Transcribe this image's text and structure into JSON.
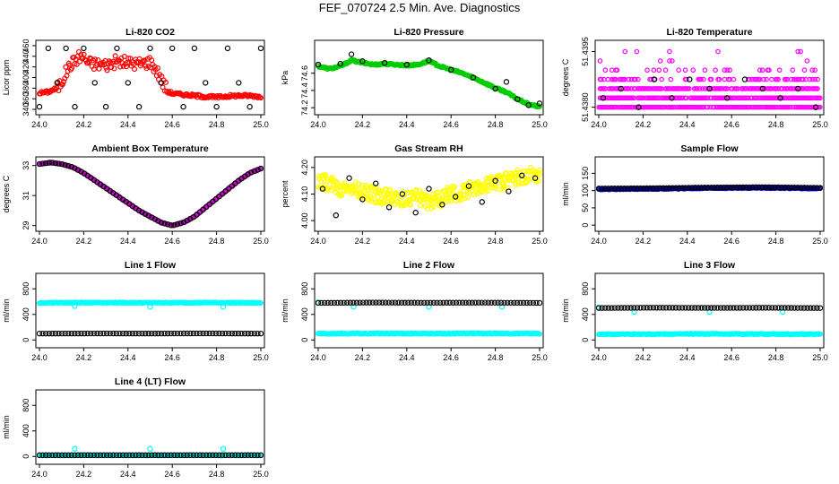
{
  "figure": {
    "title": "FEF_070724  2.5 Min. Ave. Diagnostics"
  },
  "chart_data": [
    {
      "type": "scatter",
      "title": "Li-820 CO2",
      "ylabel": "Licor ppm",
      "xlim": [
        24.0,
        25.0
      ],
      "ylim": [
        335,
        465
      ],
      "xticks": [
        "24.0",
        "24.2",
        "24.4",
        "24.6",
        "24.8",
        "25.0"
      ],
      "yticks": [
        "340",
        "360",
        "380",
        "400",
        "420",
        "440",
        "460"
      ],
      "main_color": "#ff0000",
      "series": [
        {
          "name": "main",
          "color": "#ff0000",
          "x": [
            24.0,
            24.04,
            24.08,
            24.1,
            24.12,
            24.14,
            24.16,
            24.18,
            24.2,
            24.22,
            24.25,
            24.3,
            24.35,
            24.4,
            24.45,
            24.5,
            24.52,
            24.54,
            24.56,
            24.58,
            24.6,
            24.65,
            24.7,
            24.75,
            24.8,
            24.85,
            24.9,
            24.95,
            25.0
          ],
          "y": [
            371,
            373,
            380,
            392,
            410,
            424,
            432,
            440,
            438,
            428,
            426,
            424,
            430,
            428,
            426,
            430,
            420,
            405,
            388,
            375,
            370,
            368,
            366,
            364,
            363,
            365,
            366,
            366,
            364
          ]
        },
        {
          "name": "reference",
          "color": "#000000",
          "x": [
            24.0,
            24.04,
            24.08,
            24.12,
            24.16,
            24.2,
            24.25,
            24.3,
            24.35,
            24.4,
            24.45,
            24.5,
            24.55,
            24.6,
            24.65,
            24.7,
            24.75,
            24.8,
            24.85,
            24.9,
            24.95,
            25.0
          ],
          "y": [
            345,
            455,
            390,
            455,
            345,
            455,
            390,
            345,
            455,
            390,
            345,
            455,
            390,
            455,
            345,
            455,
            390,
            345,
            455,
            390,
            345,
            455
          ]
        }
      ]
    },
    {
      "type": "scatter",
      "title": "Li-820 Pressure",
      "ylabel": "kPa",
      "xlim": [
        24.0,
        25.0
      ],
      "ylim": [
        74.15,
        74.95
      ],
      "xticks": [
        "24.0",
        "24.2",
        "24.4",
        "24.6",
        "24.8",
        "25.0"
      ],
      "yticks": [
        "74.2",
        "74.4",
        "74.6"
      ],
      "series": [
        {
          "name": "main",
          "color": "#00cc00",
          "x": [
            24.0,
            24.05,
            24.1,
            24.15,
            24.2,
            24.25,
            24.3,
            24.35,
            24.4,
            24.45,
            24.5,
            24.55,
            24.6,
            24.65,
            24.7,
            24.75,
            24.8,
            24.85,
            24.9,
            24.95,
            25.0
          ],
          "y": [
            74.68,
            74.65,
            74.68,
            74.75,
            74.72,
            74.7,
            74.71,
            74.7,
            74.69,
            74.7,
            74.74,
            74.68,
            74.64,
            74.6,
            74.55,
            74.49,
            74.43,
            74.38,
            74.3,
            74.24,
            74.21
          ]
        },
        {
          "name": "reference",
          "color": "#000000",
          "x": [
            24.0,
            24.1,
            24.15,
            24.2,
            24.3,
            24.4,
            24.5,
            24.6,
            24.7,
            24.8,
            24.85,
            24.9,
            24.95,
            25.0
          ],
          "y": [
            74.7,
            74.71,
            74.82,
            74.74,
            74.72,
            74.7,
            74.75,
            74.64,
            74.55,
            74.42,
            74.5,
            74.3,
            74.23,
            74.25
          ]
        }
      ]
    },
    {
      "type": "scatter",
      "title": "Li-820 Temperature",
      "ylabel": "degrees C",
      "xlim": [
        24.0,
        25.0
      ],
      "ylim": [
        51.43787,
        51.43973
      ],
      "xticks": [
        "24.0",
        "24.2",
        "24.4",
        "24.6",
        "24.8",
        "25.0"
      ],
      "yticks": [
        "51.4380",
        "51.4395"
      ],
      "series": [
        {
          "name": "main",
          "color": "#ff00ff",
          "levels": [
            51.438,
            51.43825,
            51.4385,
            51.43875,
            51.439,
            51.43925,
            51.4395
          ],
          "x": [
            24.0,
            25.0
          ]
        },
        {
          "name": "reference",
          "color": "#000000",
          "x": [
            24.02,
            24.1,
            24.18,
            24.25,
            24.33,
            24.41,
            24.5,
            24.58,
            24.66,
            24.74,
            24.82,
            24.9,
            24.98
          ],
          "y": [
            51.43825,
            51.4385,
            51.438,
            51.43875,
            51.43825,
            51.43875,
            51.4385,
            51.43825,
            51.43875,
            51.4385,
            51.43825,
            51.4385,
            51.438
          ]
        }
      ]
    },
    {
      "type": "scatter",
      "title": "Ambient Box Temperature",
      "ylabel": "degrees C",
      "xlim": [
        24.0,
        25.0
      ],
      "ylim": [
        28.8,
        33.4
      ],
      "xticks": [
        "24.0",
        "24.2",
        "24.4",
        "24.6",
        "24.8",
        "25.0"
      ],
      "yticks": [
        "29",
        "31",
        "33"
      ],
      "series": [
        {
          "name": "main",
          "color": "#cc00cc",
          "x": [
            24.0,
            24.05,
            24.1,
            24.15,
            24.2,
            24.25,
            24.3,
            24.35,
            24.4,
            24.45,
            24.5,
            24.55,
            24.6,
            24.65,
            24.7,
            24.75,
            24.8,
            24.85,
            24.9,
            24.95,
            25.0
          ],
          "y": [
            33.1,
            33.2,
            33.1,
            32.9,
            32.5,
            32.0,
            31.5,
            31.0,
            30.5,
            30.0,
            29.6,
            29.2,
            29.0,
            29.2,
            29.6,
            30.2,
            30.8,
            31.4,
            32.0,
            32.5,
            32.8
          ]
        },
        {
          "name": "reference",
          "color": "#000000",
          "x": [
            24.0,
            24.05,
            24.1,
            24.15,
            24.2,
            24.25,
            24.3,
            24.35,
            24.4,
            24.45,
            24.5,
            24.55,
            24.6,
            24.65,
            24.7,
            24.75,
            24.8,
            24.85,
            24.9,
            24.95,
            25.0
          ],
          "y": [
            33.1,
            33.2,
            33.1,
            32.9,
            32.5,
            32.0,
            31.5,
            31.0,
            30.5,
            30.0,
            29.6,
            29.2,
            29.0,
            29.2,
            29.6,
            30.2,
            30.8,
            31.4,
            32.0,
            32.5,
            32.8
          ]
        }
      ]
    },
    {
      "type": "scatter",
      "title": "Gas Stream RH",
      "ylabel": "percent",
      "xlim": [
        24.0,
        25.0
      ],
      "ylim": [
        3.97,
        4.23
      ],
      "xticks": [
        "24.0",
        "24.2",
        "24.4",
        "24.6",
        "24.8",
        "25.0"
      ],
      "yticks": [
        "4.00",
        "4.10",
        "4.20"
      ],
      "series": [
        {
          "name": "main",
          "color": "#ffff00",
          "x": [
            24.0,
            24.05,
            24.1,
            24.15,
            24.2,
            24.25,
            24.3,
            24.35,
            24.4,
            24.45,
            24.5,
            24.55,
            24.6,
            24.65,
            24.7,
            24.75,
            24.8,
            24.85,
            24.9,
            24.95,
            25.0
          ],
          "y": [
            4.15,
            4.14,
            4.12,
            4.13,
            4.11,
            4.1,
            4.09,
            4.08,
            4.08,
            4.09,
            4.07,
            4.08,
            4.1,
            4.11,
            4.12,
            4.13,
            4.14,
            4.15,
            4.16,
            4.17,
            4.18
          ]
        },
        {
          "name": "reference",
          "color": "#000000",
          "x": [
            24.02,
            24.08,
            24.14,
            24.2,
            24.26,
            24.32,
            24.38,
            24.44,
            24.5,
            24.56,
            24.62,
            24.68,
            24.74,
            24.8,
            24.86,
            24.92,
            24.98
          ],
          "y": [
            4.12,
            4.02,
            4.16,
            4.08,
            4.14,
            4.05,
            4.1,
            4.03,
            4.12,
            4.06,
            4.09,
            4.13,
            4.07,
            4.15,
            4.11,
            4.17,
            4.16
          ]
        }
      ]
    },
    {
      "type": "scatter",
      "title": "Sample Flow",
      "ylabel": "ml/min",
      "xlim": [
        24.0,
        25.0
      ],
      "ylim": [
        -10,
        190
      ],
      "xticks": [
        "24.0",
        "24.2",
        "24.4",
        "24.6",
        "24.8",
        "25.0"
      ],
      "yticks": [
        "0",
        "50",
        "100",
        "150"
      ],
      "series": [
        {
          "name": "main",
          "color": "#0000cc",
          "x": [
            24.0,
            24.25,
            24.5,
            24.75,
            25.0
          ],
          "y": [
            104,
            105,
            107,
            108,
            106
          ]
        },
        {
          "name": "reference",
          "color": "#000000",
          "x": [
            24.0,
            24.25,
            24.5,
            24.75,
            25.0
          ],
          "y": [
            106,
            107,
            109,
            110,
            108
          ]
        }
      ]
    },
    {
      "type": "scatter",
      "title": "Line 1 Flow",
      "ylabel": "ml/min",
      "xlim": [
        24.0,
        25.0
      ],
      "ylim": [
        -80,
        1000
      ],
      "xticks": [
        "24.0",
        "24.2",
        "24.4",
        "24.6",
        "24.8",
        "25.0"
      ],
      "yticks": [
        "0",
        "400",
        "800"
      ],
      "series": [
        {
          "name": "main",
          "color": "#00ffff",
          "x": [
            24.0,
            24.25,
            24.5,
            24.75,
            25.0
          ],
          "y": [
            580,
            585,
            582,
            584,
            580
          ]
        },
        {
          "name": "reference",
          "color": "#000000",
          "x": [
            24.0,
            24.25,
            24.5,
            24.75,
            25.0
          ],
          "y": [
            100,
            102,
            101,
            103,
            100
          ]
        }
      ],
      "outliers": {
        "color": "#00ffff",
        "x": [
          24.16,
          24.5,
          24.83
        ],
        "y": [
          530,
          520,
          520
        ]
      }
    },
    {
      "type": "scatter",
      "title": "Line 2 Flow",
      "ylabel": "ml/min",
      "xlim": [
        24.0,
        25.0
      ],
      "ylim": [
        -80,
        1000
      ],
      "xticks": [
        "24.0",
        "24.2",
        "24.4",
        "24.6",
        "24.8",
        "25.0"
      ],
      "yticks": [
        "0",
        "400",
        "800"
      ],
      "series": [
        {
          "name": "main",
          "color": "#00ffff",
          "x": [
            24.0,
            24.25,
            24.5,
            24.75,
            25.0
          ],
          "y": [
            100,
            102,
            101,
            103,
            100
          ]
        },
        {
          "name": "reference",
          "color": "#000000",
          "x": [
            24.0,
            24.25,
            24.5,
            24.75,
            25.0
          ],
          "y": [
            580,
            585,
            582,
            584,
            580
          ]
        }
      ],
      "outliers": {
        "color": "#00ffff",
        "x": [
          24.0,
          24.16,
          24.5,
          24.83
        ],
        "y": [
          590,
          520,
          520,
          520
        ]
      }
    },
    {
      "type": "scatter",
      "title": "Line 3 Flow",
      "ylabel": "ml/min",
      "xlim": [
        24.0,
        25.0
      ],
      "ylim": [
        -80,
        1000
      ],
      "xticks": [
        "24.0",
        "24.2",
        "24.4",
        "24.6",
        "24.8",
        "25.0"
      ],
      "yticks": [
        "0",
        "400",
        "800"
      ],
      "series": [
        {
          "name": "main",
          "color": "#00ffff",
          "x": [
            24.0,
            24.25,
            24.5,
            24.75,
            25.0
          ],
          "y": [
            90,
            92,
            95,
            93,
            90
          ]
        },
        {
          "name": "reference",
          "color": "#000000",
          "x": [
            24.0,
            24.25,
            24.5,
            24.75,
            25.0
          ],
          "y": [
            500,
            505,
            502,
            504,
            500
          ]
        }
      ],
      "outliers": {
        "color": "#00ffff",
        "x": [
          24.0,
          24.16,
          24.5,
          24.83
        ],
        "y": [
          510,
          440,
          440,
          440
        ]
      }
    },
    {
      "type": "scatter",
      "title": "Line 4 (LT) Flow",
      "ylabel": "ml/min",
      "xlim": [
        24.0,
        25.0
      ],
      "ylim": [
        -80,
        1000
      ],
      "xticks": [
        "24.0",
        "24.2",
        "24.4",
        "24.6",
        "24.8",
        "25.0"
      ],
      "yticks": [
        "0",
        "400",
        "800"
      ],
      "series": [
        {
          "name": "main",
          "color": "#00ffff",
          "x": [
            24.0,
            24.25,
            24.5,
            24.75,
            25.0
          ],
          "y": [
            20,
            20,
            20,
            20,
            20
          ]
        },
        {
          "name": "reference",
          "color": "#000000",
          "x": [
            24.0,
            24.25,
            24.5,
            24.75,
            25.0
          ],
          "y": [
            20,
            20,
            20,
            20,
            20
          ]
        }
      ],
      "outliers": {
        "color": "#00ffff",
        "x": [
          24.16,
          24.5,
          24.83
        ],
        "y": [
          120,
          120,
          120
        ]
      }
    }
  ]
}
